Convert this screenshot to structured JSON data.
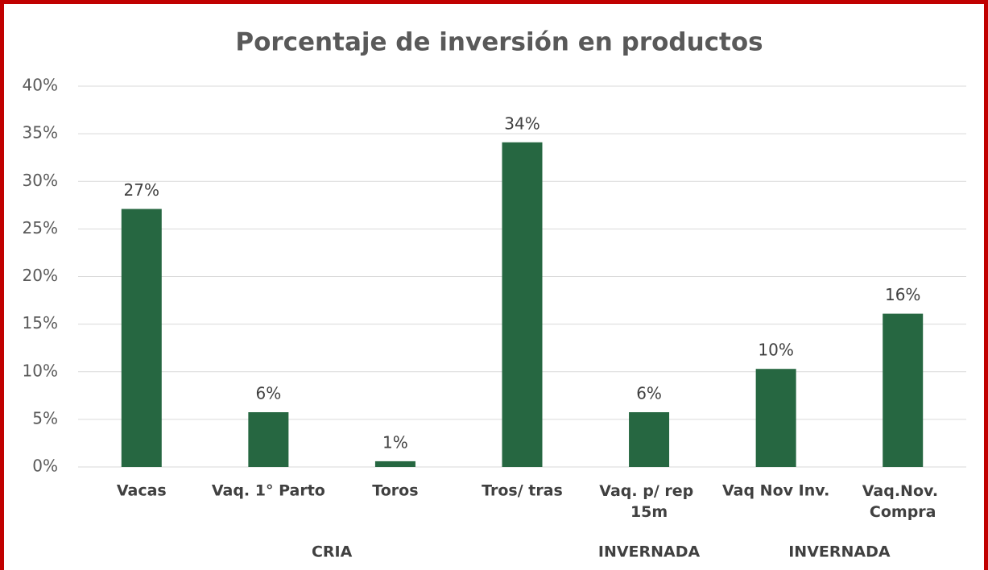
{
  "chart_data": {
    "type": "bar",
    "title": "Porcentaje de inversión en productos",
    "categories": [
      "Vacas",
      "Vaq. 1° Parto",
      "Toros",
      "Tros/ tras",
      "Vaq. p/ rep 15m",
      "Vaq Nov Inv.",
      "Vaq.Nov. Compra"
    ],
    "values": [
      27.1,
      5.75,
      0.6,
      34.1,
      5.75,
      10.3,
      16.1
    ],
    "value_labels": [
      "27%",
      "6%",
      "1%",
      "34%",
      "6%",
      "10%",
      "16%"
    ],
    "groups": [
      {
        "name": "CRIA",
        "count": 4
      },
      {
        "name": "INVERNADA",
        "count": 1
      },
      {
        "name": "INVERNADA",
        "count": 2
      }
    ],
    "color": "#266741",
    "ylim": [
      0,
      40
    ],
    "yticks": [
      {
        "value": 0,
        "label": "0%"
      },
      {
        "value": 5,
        "label": "5%"
      },
      {
        "value": 10,
        "label": "10%"
      },
      {
        "value": 15,
        "label": "15%"
      },
      {
        "value": 20,
        "label": "20%"
      },
      {
        "value": 25,
        "label": "25%"
      },
      {
        "value": 30,
        "label": "30%"
      },
      {
        "value": 35,
        "label": "35%"
      },
      {
        "value": 40,
        "label": "40%"
      }
    ],
    "grid": true
  }
}
